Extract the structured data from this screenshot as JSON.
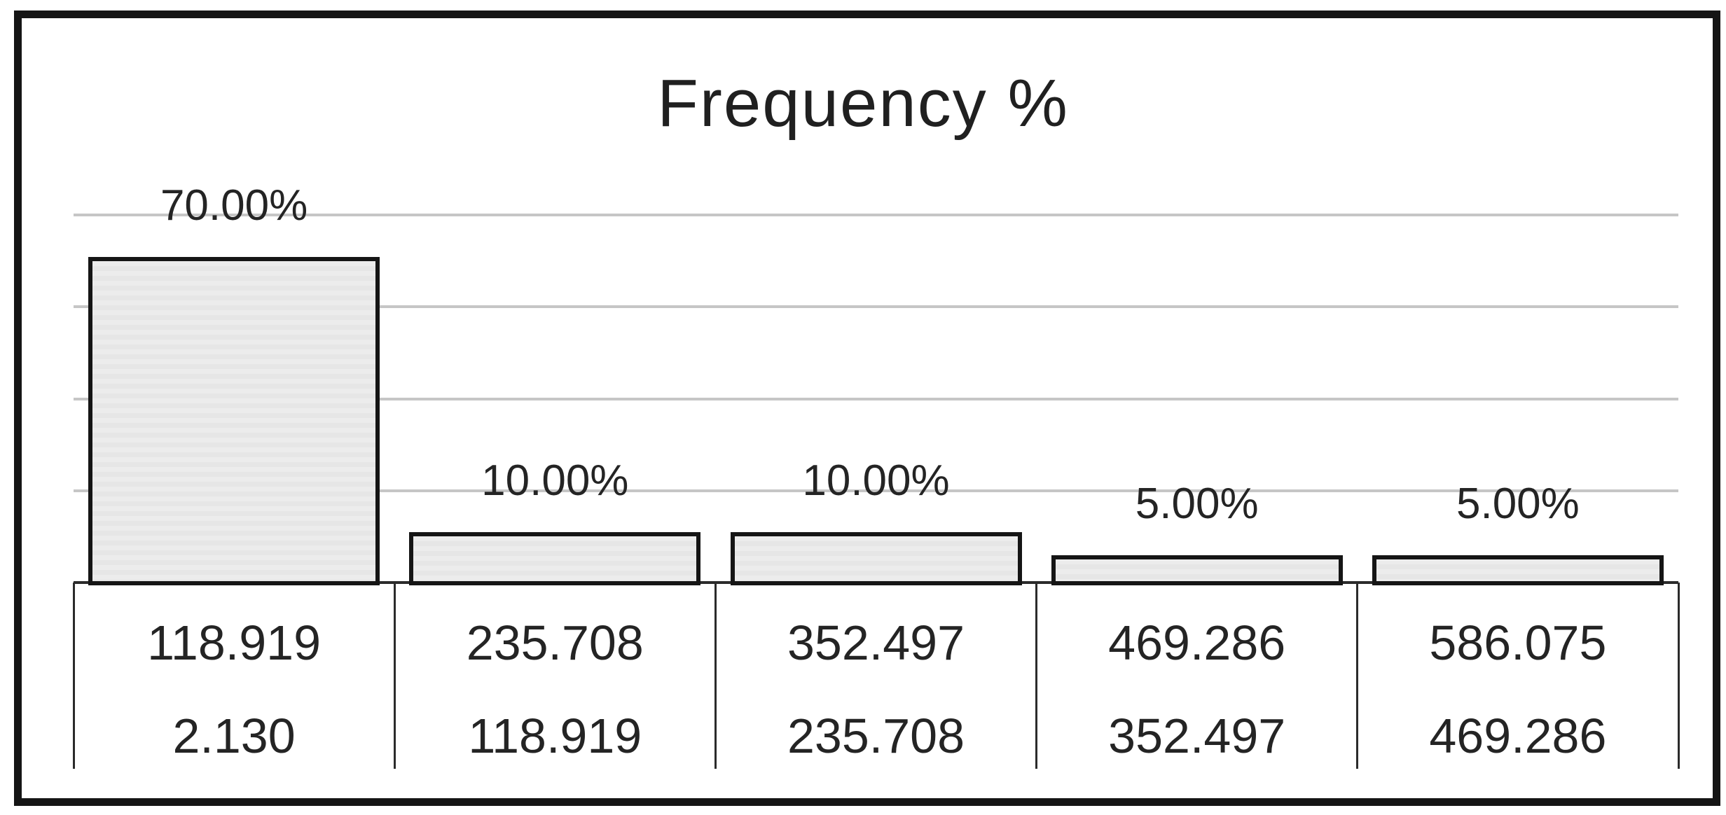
{
  "title": "Frequency %",
  "chart_data": {
    "type": "bar",
    "title": "Frequency %",
    "series": [
      {
        "name": "Frequency %",
        "values": [
          70,
          10,
          10,
          5,
          5
        ]
      }
    ],
    "bar_labels": [
      "70.00%",
      "10.00%",
      "10.00%",
      "5.00%",
      "5.00%"
    ],
    "categories": [
      {
        "upper": "118.919",
        "lower": "2.130"
      },
      {
        "upper": "235.708",
        "lower": "118.919"
      },
      {
        "upper": "352.497",
        "lower": "235.708"
      },
      {
        "upper": "469.286",
        "lower": "352.497"
      },
      {
        "upper": "586.075",
        "lower": "469.286"
      }
    ],
    "xlabel": "",
    "ylabel": "",
    "ylim": [
      0,
      80
    ],
    "gridline_pcts": [
      20,
      40,
      60,
      80
    ],
    "grid": true,
    "legend": false
  },
  "colors": {
    "background": "#ffffff",
    "frame": "#151515",
    "bar_fill": "#e9e9e9",
    "bar_border": "#151515",
    "gridline": "#c6c6c6",
    "axis_line": "#2b2b2b",
    "text": "#242424"
  }
}
